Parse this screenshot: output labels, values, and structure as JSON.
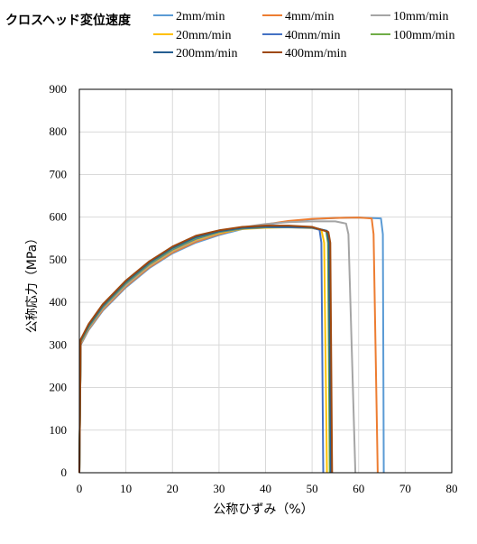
{
  "chart_data": {
    "type": "line",
    "legend_title": "クロスヘッド変位速度",
    "legend_placement": "top",
    "xlabel": "公称ひずみ（%）",
    "ylabel": "公称応力（MPa）",
    "xlim": [
      0,
      80
    ],
    "ylim": [
      0,
      900
    ],
    "xticks": [
      "0",
      "10",
      "20",
      "30",
      "40",
      "50",
      "60",
      "70",
      "80"
    ],
    "yticks": [
      "0",
      "100",
      "200",
      "300",
      "400",
      "500",
      "600",
      "700",
      "800",
      "900"
    ],
    "grid": true,
    "series": [
      {
        "name": "2mm/min",
        "color": "#5b9bd5",
        "values": [
          [
            0,
            0
          ],
          [
            0.3,
            300
          ],
          [
            2,
            335
          ],
          [
            5,
            380
          ],
          [
            10,
            435
          ],
          [
            15,
            480
          ],
          [
            20,
            515
          ],
          [
            25,
            540
          ],
          [
            30,
            558
          ],
          [
            35,
            572
          ],
          [
            40,
            582
          ],
          [
            45,
            590
          ],
          [
            50,
            595
          ],
          [
            55,
            598
          ],
          [
            60,
            599
          ],
          [
            64.8,
            597
          ],
          [
            65.2,
            560
          ],
          [
            65.4,
            0
          ]
        ]
      },
      {
        "name": "4mm/min",
        "color": "#ed7d31",
        "values": [
          [
            0,
            0
          ],
          [
            0.3,
            302
          ],
          [
            2,
            337
          ],
          [
            5,
            382
          ],
          [
            10,
            437
          ],
          [
            15,
            482
          ],
          [
            20,
            517
          ],
          [
            25,
            542
          ],
          [
            30,
            560
          ],
          [
            35,
            574
          ],
          [
            40,
            583
          ],
          [
            45,
            591
          ],
          [
            50,
            596
          ],
          [
            55,
            598
          ],
          [
            60,
            599
          ],
          [
            62.8,
            597
          ],
          [
            63.2,
            560
          ],
          [
            64.1,
            0
          ]
        ]
      },
      {
        "name": "10mm/min",
        "color": "#a5a5a5",
        "values": [
          [
            0,
            0
          ],
          [
            0.3,
            304
          ],
          [
            2,
            339
          ],
          [
            5,
            385
          ],
          [
            10,
            440
          ],
          [
            15,
            485
          ],
          [
            20,
            520
          ],
          [
            25,
            545
          ],
          [
            30,
            562
          ],
          [
            35,
            576
          ],
          [
            40,
            584
          ],
          [
            45,
            588
          ],
          [
            50,
            590
          ],
          [
            55,
            590
          ],
          [
            57.3,
            585
          ],
          [
            57.8,
            560
          ],
          [
            59.3,
            0
          ]
        ]
      },
      {
        "name": "20mm/min",
        "color": "#ffc000",
        "values": [
          [
            0,
            0
          ],
          [
            0.3,
            306
          ],
          [
            2,
            341
          ],
          [
            5,
            387
          ],
          [
            10,
            443
          ],
          [
            15,
            487
          ],
          [
            20,
            522
          ],
          [
            25,
            547
          ],
          [
            30,
            563
          ],
          [
            35,
            572
          ],
          [
            40,
            575
          ],
          [
            45,
            576
          ],
          [
            50,
            574
          ],
          [
            52,
            570
          ],
          [
            52.6,
            540
          ],
          [
            53.2,
            0
          ]
        ]
      },
      {
        "name": "40mm/min",
        "color": "#4472c4",
        "values": [
          [
            0,
            0
          ],
          [
            0.3,
            307
          ],
          [
            2,
            342
          ],
          [
            5,
            388
          ],
          [
            10,
            444
          ],
          [
            15,
            489
          ],
          [
            20,
            524
          ],
          [
            25,
            549
          ],
          [
            30,
            565
          ],
          [
            35,
            573
          ],
          [
            40,
            576
          ],
          [
            45,
            576
          ],
          [
            50,
            575
          ],
          [
            51.6,
            570
          ],
          [
            52,
            540
          ],
          [
            52.4,
            0
          ]
        ]
      },
      {
        "name": "100mm/min",
        "color": "#70ad47",
        "values": [
          [
            0,
            0
          ],
          [
            0.3,
            309
          ],
          [
            2,
            344
          ],
          [
            5,
            390
          ],
          [
            10,
            446
          ],
          [
            15,
            491
          ],
          [
            20,
            526
          ],
          [
            25,
            551
          ],
          [
            30,
            566
          ],
          [
            35,
            574
          ],
          [
            40,
            577
          ],
          [
            45,
            578
          ],
          [
            50,
            576
          ],
          [
            53,
            568
          ],
          [
            53.4,
            540
          ],
          [
            53.8,
            0
          ]
        ]
      },
      {
        "name": "200mm/min",
        "color": "#255e91",
        "values": [
          [
            0,
            0
          ],
          [
            0.3,
            311
          ],
          [
            2,
            346
          ],
          [
            5,
            392
          ],
          [
            10,
            448
          ],
          [
            15,
            493
          ],
          [
            20,
            528
          ],
          [
            25,
            553
          ],
          [
            30,
            567
          ],
          [
            35,
            575
          ],
          [
            40,
            578
          ],
          [
            45,
            578
          ],
          [
            50,
            576
          ],
          [
            53.2,
            568
          ],
          [
            53.6,
            540
          ],
          [
            54,
            0
          ]
        ]
      },
      {
        "name": "400mm/min",
        "color": "#9e480e",
        "values": [
          [
            0,
            0
          ],
          [
            0.3,
            313
          ],
          [
            2,
            349
          ],
          [
            5,
            395
          ],
          [
            10,
            451
          ],
          [
            15,
            496
          ],
          [
            20,
            531
          ],
          [
            25,
            556
          ],
          [
            30,
            569
          ],
          [
            35,
            577
          ],
          [
            40,
            580
          ],
          [
            45,
            580
          ],
          [
            50,
            577
          ],
          [
            53.5,
            565
          ],
          [
            53.9,
            540
          ],
          [
            54.3,
            0
          ]
        ]
      }
    ]
  }
}
